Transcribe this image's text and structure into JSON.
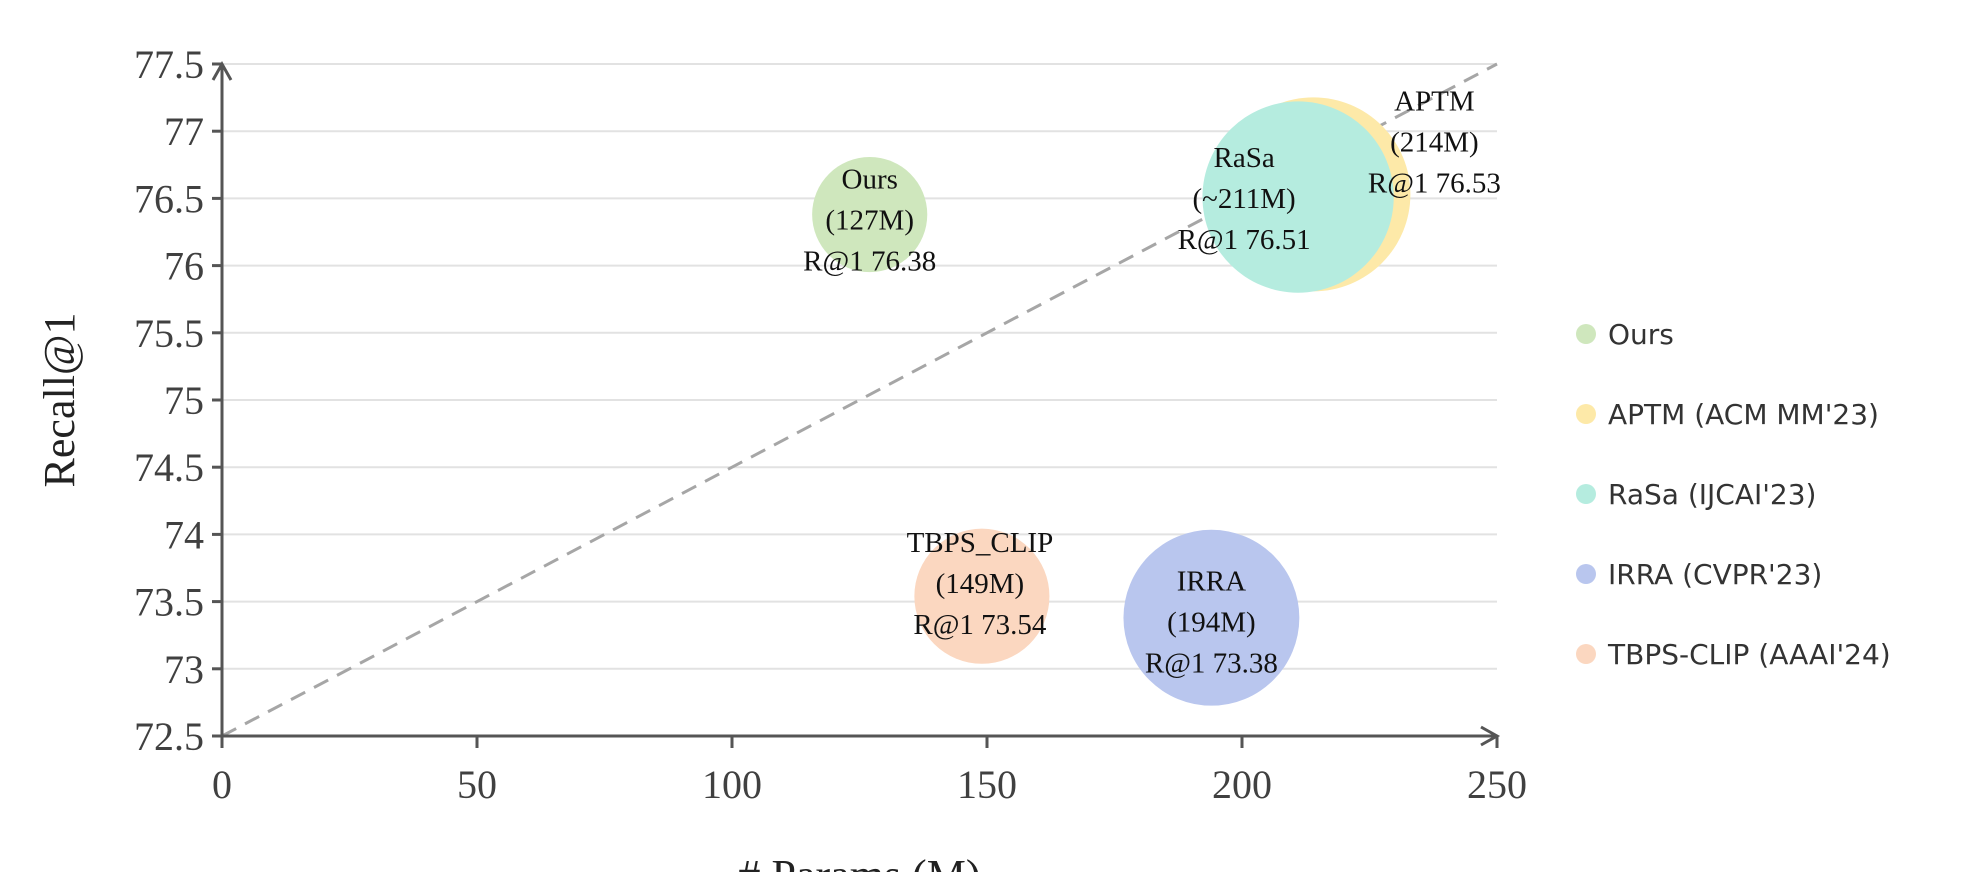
{
  "chart_data": {
    "type": "scatter",
    "subtype": "bubble",
    "title": "",
    "xlabel": "# Params (M)",
    "ylabel": "Recall@1",
    "xlim": [
      0,
      250
    ],
    "ylim": [
      72.5,
      77.5
    ],
    "x_ticks": [
      0,
      50,
      100,
      150,
      200,
      250
    ],
    "y_ticks": [
      72.5,
      73,
      73.5,
      74,
      74.5,
      75,
      75.5,
      76,
      76.5,
      77,
      77.5
    ],
    "x_tick_labels": [
      "0",
      "50",
      "100",
      "150",
      "200",
      "250"
    ],
    "y_tick_labels": [
      "72.5",
      "73",
      "73.5",
      "74",
      "74.5",
      "75",
      "75.5",
      "76",
      "76.5",
      "77",
      "77.5"
    ],
    "grid": "horizontal",
    "reference_line": {
      "style": "dashed",
      "from": [
        0,
        72.5
      ],
      "to": [
        250,
        77.5
      ]
    },
    "legend_position": "right",
    "series": [
      {
        "name": "Ours",
        "x": 127,
        "y": 76.38,
        "size": 127,
        "color": "#cfe7bd",
        "label_lines": [
          "Ours",
          "(127M)",
          "R@1 76.38"
        ]
      },
      {
        "name": "APTM (ACM MM'23)",
        "x": 214,
        "y": 76.53,
        "size": 214,
        "color": "#fde9a8",
        "label_lines": [
          "APTM",
          "(214M)",
          "R@1 76.53"
        ]
      },
      {
        "name": "RaSa (IJCAI'23)",
        "x": 211,
        "y": 76.51,
        "size": 211,
        "color": "#b5ecdf",
        "label_lines": [
          "RaSa",
          "(~211M)",
          "R@1 76.51"
        ]
      },
      {
        "name": "IRRA (CVPR'23)",
        "x": 194,
        "y": 73.38,
        "size": 194,
        "color": "#b9c6ee",
        "label_lines": [
          "IRRA",
          "(194M)",
          "R@1 73.38"
        ]
      },
      {
        "name": "TBPS-CLIP (AAAI'24)",
        "x": 149,
        "y": 73.54,
        "size": 149,
        "color": "#fbd7c0",
        "label_lines": [
          "TBPS_CLIP",
          "(149M)",
          "R@1 73.54"
        ]
      }
    ],
    "draw_order": [
      "Ours",
      "APTM (ACM MM'23)",
      "RaSa (IJCAI'23)",
      "IRRA (CVPR'23)",
      "TBPS-CLIP (AAAI'24)"
    ]
  }
}
